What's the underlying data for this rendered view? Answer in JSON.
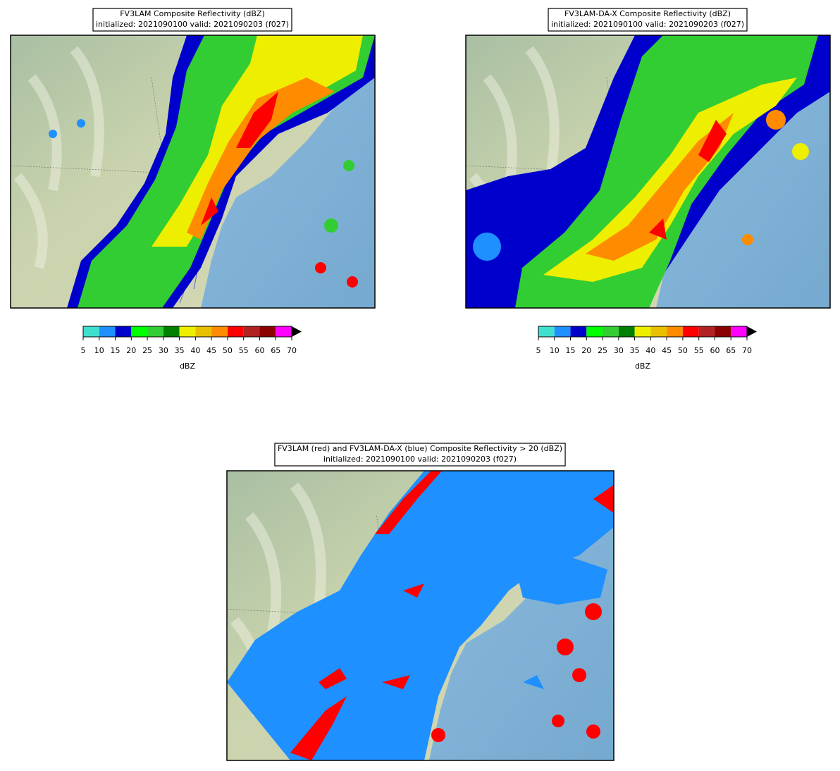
{
  "panels": [
    {
      "title": "FV3LAM Composite Reflectivity (dBZ)",
      "subtitle": "initialized: 2021090100 valid: 2021090203 (f027)",
      "colorbar": {
        "ticks": [
          5,
          10,
          15,
          20,
          25,
          30,
          35,
          40,
          45,
          50,
          55,
          60,
          65,
          70
        ],
        "colors": [
          "#40e0d0",
          "#1e90ff",
          "#0000cd",
          "#00ff00",
          "#32cd32",
          "#008000",
          "#eeee00",
          "#e8c000",
          "#ff8c00",
          "#ff0000",
          "#b22222",
          "#8b0000",
          "#ff00ff"
        ],
        "label": "dBZ"
      }
    },
    {
      "title": "FV3LAM-DA-X Composite Reflectivity (dBZ)",
      "subtitle": "initialized: 2021090100 valid: 2021090203 (f027)",
      "colorbar": {
        "ticks": [
          5,
          10,
          15,
          20,
          25,
          30,
          35,
          40,
          45,
          50,
          55,
          60,
          65,
          70
        ],
        "colors": [
          "#40e0d0",
          "#1e90ff",
          "#0000cd",
          "#00ff00",
          "#32cd32",
          "#008000",
          "#eeee00",
          "#e8c000",
          "#ff8c00",
          "#ff0000",
          "#b22222",
          "#8b0000",
          "#ff00ff"
        ],
        "label": "dBZ"
      }
    },
    {
      "title": "FV3LAM (red) and FV3LAM-DA-X (blue) Composite Reflectivity > 20 (dBZ)",
      "subtitle": "initialized: 2021090100 valid: 2021090203 (f027)"
    }
  ]
}
